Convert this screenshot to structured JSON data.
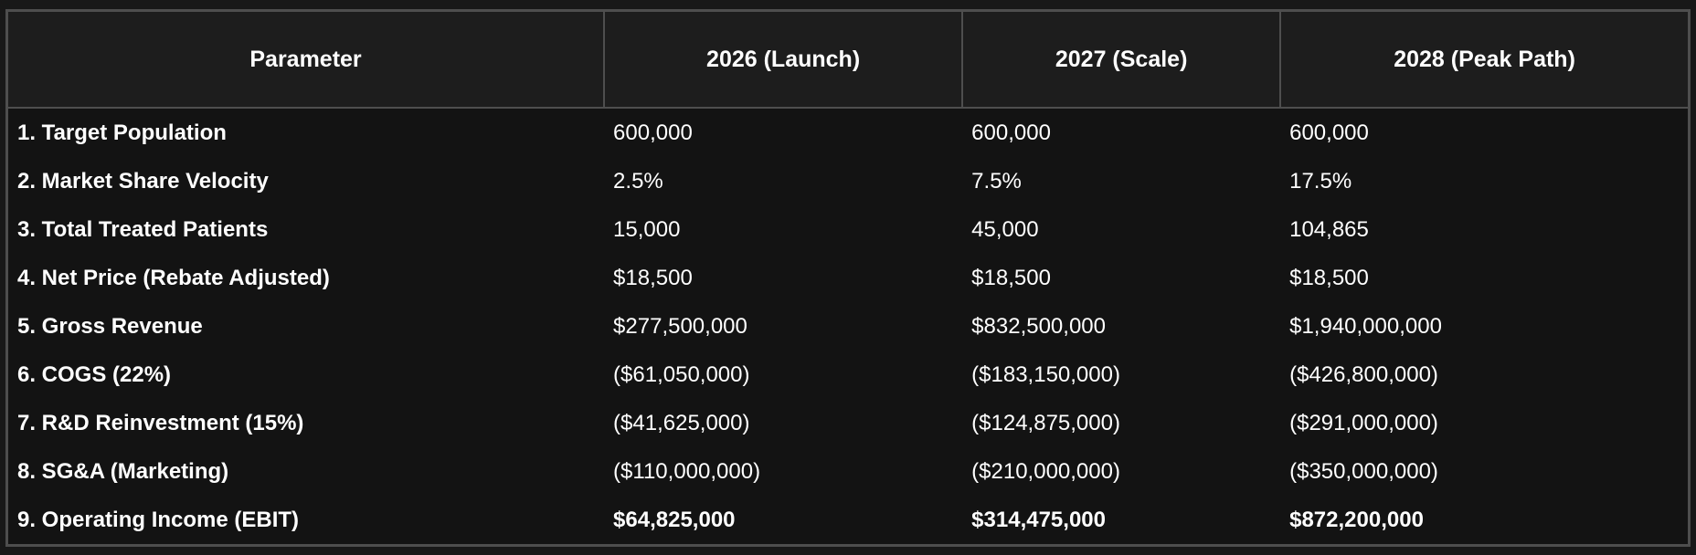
{
  "chart_data": {
    "type": "table",
    "columns": [
      "Parameter",
      "2026 (Launch)",
      "2027 (Scale)",
      "2028 (Peak Path)"
    ],
    "rows": [
      [
        "1. Target Population",
        "600,000",
        "600,000",
        "600,000"
      ],
      [
        "2. Market Share Velocity",
        "2.5%",
        "7.5%",
        "17.5%"
      ],
      [
        "3. Total Treated Patients",
        "15,000",
        "45,000",
        "104,865"
      ],
      [
        "4. Net Price (Rebate Adjusted)",
        "$18,500",
        "$18,500",
        "$18,500"
      ],
      [
        "5. Gross Revenue",
        "$277,500,000",
        "$832,500,000",
        "$1,940,000,000"
      ],
      [
        "6. COGS (22%)",
        "($61,050,000)",
        "($183,150,000)",
        "($426,800,000)"
      ],
      [
        "7. R&D Reinvestment (15%)",
        "($41,625,000)",
        "($124,875,000)",
        "($291,000,000)"
      ],
      [
        "8. SG&A (Marketing)",
        "($110,000,000)",
        "($210,000,000)",
        "($350,000,000)"
      ],
      [
        "9. Operating Income (EBIT)",
        "$64,825,000",
        "$314,475,000",
        "$872,200,000"
      ]
    ],
    "emphasized_row": "9. Operating Income (EBIT)",
    "layout": {
      "theme": "dark",
      "header_borders": true,
      "body_gridlines": false
    }
  },
  "colors": {
    "page_bg": "#181818",
    "header_bg": "#1d1d1d",
    "body_bg": "#131313",
    "border": "#4e4e4e",
    "text": "#ffffff"
  }
}
